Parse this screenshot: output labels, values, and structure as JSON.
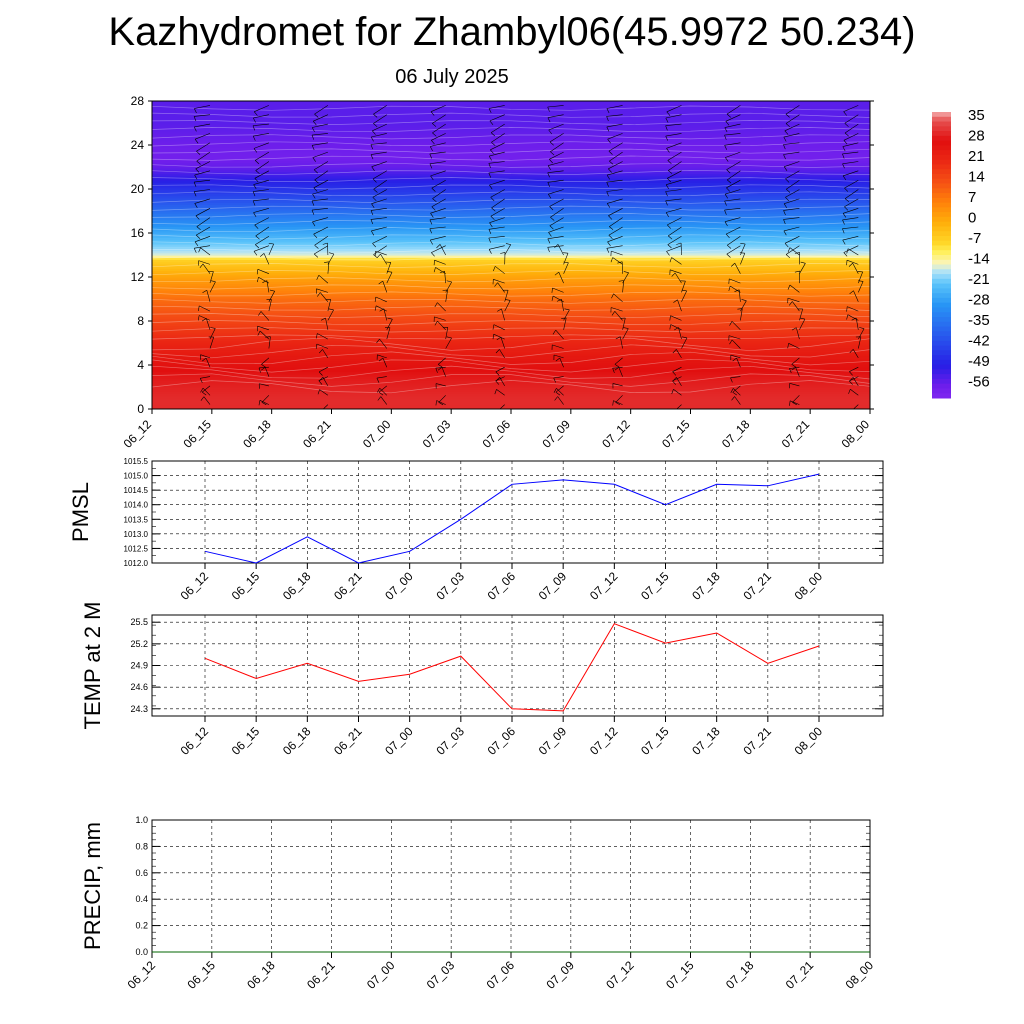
{
  "title": "Kazhydromet for Zhambyl06(45.9972 50.234)",
  "subtitle": "06 July 2025",
  "time_labels": [
    "06_12",
    "06_15",
    "06_18",
    "06_21",
    "07_00",
    "07_03",
    "07_06",
    "07_09",
    "07_12",
    "07_15",
    "07_18",
    "07_21",
    "08_00"
  ],
  "chart_data": [
    {
      "type": "heatmap",
      "title": "",
      "xlabel": "",
      "ylabel": "",
      "x": [
        "06_12",
        "06_15",
        "06_18",
        "06_21",
        "07_00",
        "07_03",
        "07_06",
        "07_09",
        "07_12",
        "07_15",
        "07_18",
        "07_21",
        "08_00"
      ],
      "y_ticks": [
        0,
        4,
        8,
        12,
        16,
        20,
        24,
        28
      ],
      "ylim": [
        0,
        28
      ],
      "colorbar_labels": [
        "35",
        "28",
        "21",
        "14",
        "7",
        "0",
        "-7",
        "-14",
        "-21",
        "-28",
        "-35",
        "-42",
        "-49",
        "-56"
      ],
      "colorbar_range": [
        -60,
        38
      ],
      "temperature_profile": {
        "heights": [
          0,
          1,
          2,
          3,
          4,
          5,
          6,
          7,
          8,
          9,
          10,
          11,
          12,
          13,
          13.6,
          14,
          15,
          16,
          17,
          18,
          19,
          20,
          21,
          22,
          23,
          24,
          25,
          26,
          27,
          28
        ],
        "values": [
          31,
          31,
          30,
          29,
          27,
          25,
          22,
          19,
          16,
          13,
          10,
          6,
          2,
          -3,
          -6,
          -15,
          -20,
          -25,
          -30,
          -35,
          -40,
          -45,
          -50,
          -55,
          -57,
          -56,
          -55,
          -54,
          -54,
          -54
        ]
      },
      "wind_barbs": "black barbs at each time and height level"
    },
    {
      "type": "line",
      "title": "",
      "xlabel": "",
      "ylabel": "PMSL",
      "x": [
        "06_12",
        "06_15",
        "06_18",
        "06_21",
        "07_00",
        "07_03",
        "07_06",
        "07_09",
        "07_12",
        "07_15",
        "07_18",
        "07_21",
        "08_00"
      ],
      "y_ticks": [
        "1012.0",
        "1012.5",
        "1013.0",
        "1013.5",
        "1014.0",
        "1014.5",
        "1015.0",
        "1015.5"
      ],
      "ylim": [
        1012.0,
        1015.5
      ],
      "grid": true,
      "series": [
        {
          "values": [
            1012.4,
            1012.0,
            1012.9,
            1012.0,
            1012.4,
            1013.5,
            1014.7,
            1014.85,
            1014.7,
            1014.0,
            1014.7,
            1014.65,
            1015.05
          ],
          "color": "#0000ff"
        }
      ]
    },
    {
      "type": "line",
      "title": "",
      "xlabel": "",
      "ylabel": "TEMP at 2 M",
      "x": [
        "06_12",
        "06_15",
        "06_18",
        "06_21",
        "07_00",
        "07_03",
        "07_06",
        "07_09",
        "07_12",
        "07_15",
        "07_18",
        "07_21",
        "08_00"
      ],
      "y_ticks": [
        "24.3",
        "24.6",
        "24.9",
        "25.2",
        "25.5"
      ],
      "ylim": [
        24.2,
        25.6
      ],
      "grid": true,
      "series": [
        {
          "values": [
            25.0,
            24.72,
            24.93,
            24.68,
            24.78,
            25.03,
            24.3,
            24.27,
            25.48,
            25.21,
            25.35,
            24.93,
            25.17
          ],
          "color": "#ff0000"
        }
      ]
    },
    {
      "type": "line",
      "title": "",
      "xlabel": "",
      "ylabel": "PRECIP, mm",
      "x": [
        "06_12",
        "06_15",
        "06_18",
        "06_21",
        "07_00",
        "07_03",
        "07_06",
        "07_09",
        "07_12",
        "07_15",
        "07_18",
        "07_21",
        "08_00"
      ],
      "y_ticks": [
        "0.0",
        "0.2",
        "0.4",
        "0.6",
        "0.8",
        "1.0"
      ],
      "ylim": [
        0.0,
        1.0
      ],
      "grid": true,
      "series": [
        {
          "values": [
            0,
            0,
            0,
            0,
            0,
            0,
            0,
            0,
            0,
            0,
            0,
            0,
            0
          ],
          "color": "#006400"
        }
      ]
    }
  ]
}
